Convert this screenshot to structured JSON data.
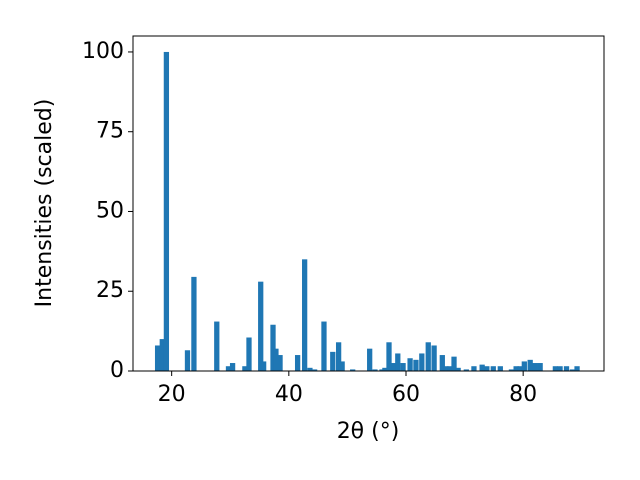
{
  "chart_data": {
    "type": "bar",
    "x_label": "2θ (°)",
    "y_label": "Intensities (scaled)",
    "x": [
      17.6,
      18.4,
      19.1,
      22.7,
      23.8,
      27.7,
      29.7,
      30.4,
      32.5,
      33.2,
      35.2,
      35.7,
      37.3,
      37.8,
      38.5,
      41.5,
      42.7,
      43.6,
      44.4,
      46.0,
      47.5,
      48.5,
      49.1,
      50.9,
      53.8,
      54.7,
      55.9,
      56.4,
      57.1,
      57.9,
      58.6,
      59.5,
      60.7,
      61.7,
      62.7,
      63.8,
      64.8,
      66.2,
      66.8,
      67.5,
      68.2,
      68.9,
      70.3,
      71.6,
      73.0,
      73.8,
      74.9,
      76.1,
      78.0,
      78.8,
      79.5,
      80.2,
      81.2,
      82.0,
      82.9,
      85.5,
      86.3,
      87.4,
      88.4,
      89.2
    ],
    "values": [
      8,
      10,
      100,
      6.5,
      29.5,
      15.5,
      1.5,
      2.5,
      1.5,
      10.5,
      28,
      3,
      14.5,
      7,
      5,
      5,
      35,
      1,
      0.5,
      15.5,
      6,
      9,
      3,
      0.5,
      7,
      0.5,
      0.5,
      1,
      9,
      2.5,
      5.5,
      2.5,
      4,
      3.5,
      5.5,
      9,
      8,
      5,
      1.5,
      1.5,
      4.5,
      1,
      0.5,
      1.5,
      2,
      1.5,
      1.5,
      1.5,
      0.5,
      1.5,
      1.5,
      3,
      3.5,
      2.5,
      2.5,
      1.5,
      1.5,
      1.5,
      0.5,
      1.5
    ],
    "color": "#1f77b4",
    "xlim": [
      13.4,
      93.8
    ],
    "xticks": [
      20,
      40,
      60,
      80
    ],
    "ylim": [
      0,
      105
    ],
    "yticks": [
      0,
      25,
      50,
      75,
      100
    ],
    "grid": false
  }
}
